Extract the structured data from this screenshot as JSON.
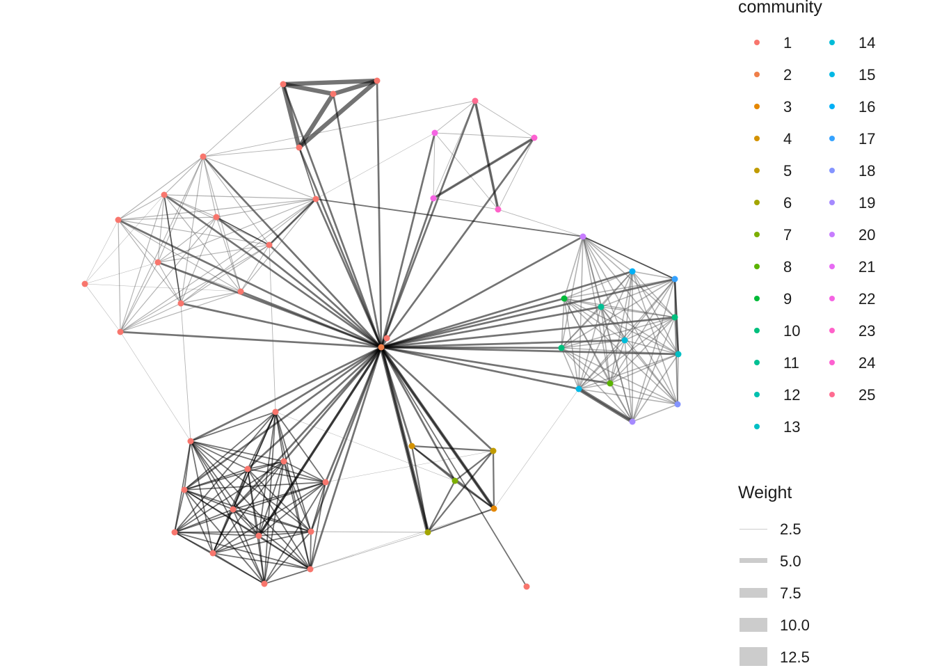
{
  "legend": {
    "community_title": "community",
    "communities": [
      {
        "label": "1",
        "color": "#F8766D"
      },
      {
        "label": "2",
        "color": "#EF7F49"
      },
      {
        "label": "3",
        "color": "#E58700"
      },
      {
        "label": "4",
        "color": "#D39200"
      },
      {
        "label": "5",
        "color": "#C09B00"
      },
      {
        "label": "6",
        "color": "#A3A500"
      },
      {
        "label": "7",
        "color": "#7CAE00"
      },
      {
        "label": "8",
        "color": "#5BB300"
      },
      {
        "label": "9",
        "color": "#00BA38"
      },
      {
        "label": "10",
        "color": "#00BF7D"
      },
      {
        "label": "11",
        "color": "#00C094"
      },
      {
        "label": "12",
        "color": "#00C0AF"
      },
      {
        "label": "13",
        "color": "#00BFC4"
      },
      {
        "label": "14",
        "color": "#00BCD8"
      },
      {
        "label": "15",
        "color": "#00B8E5"
      },
      {
        "label": "16",
        "color": "#00B0F6"
      },
      {
        "label": "17",
        "color": "#35A2FF"
      },
      {
        "label": "18",
        "color": "#8494FF"
      },
      {
        "label": "19",
        "color": "#A58AFF"
      },
      {
        "label": "20",
        "color": "#C77CFF"
      },
      {
        "label": "21",
        "color": "#E76BF3"
      },
      {
        "label": "22",
        "color": "#F564E3"
      },
      {
        "label": "23",
        "color": "#FF61C9"
      },
      {
        "label": "24",
        "color": "#FD61D1"
      },
      {
        "label": "25",
        "color": "#FF6C91"
      }
    ],
    "weight_title": "Weight",
    "weights": [
      "2.5",
      "5.0",
      "7.5",
      "10.0",
      "12.5"
    ]
  }
}
